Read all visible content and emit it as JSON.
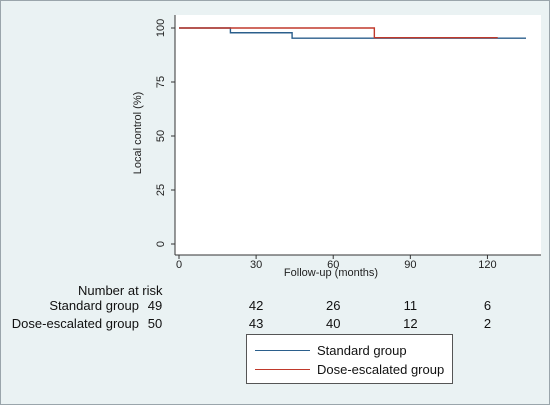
{
  "chart_data": {
    "type": "line",
    "title": "",
    "xlabel": "Follow-up (months)",
    "ylabel": "Local control (%)",
    "xlim": [
      0,
      135
    ],
    "ylim": [
      0,
      100
    ],
    "x_ticks": [
      0,
      30,
      60,
      90,
      120
    ],
    "y_ticks": [
      0,
      25,
      50,
      75,
      100
    ],
    "grid": false,
    "step": true,
    "series": [
      {
        "name": "Standard group",
        "color": "#2b5f8c",
        "x": [
          0,
          20,
          44,
          135
        ],
        "y": [
          100,
          97.8,
          95.3,
          95.3
        ]
      },
      {
        "name": "Dose-escalated group",
        "color": "#c0392b",
        "x": [
          0,
          76,
          124
        ],
        "y": [
          100,
          95.5,
          95.5
        ]
      }
    ],
    "risk_table": {
      "title": "Number at risk",
      "rows": [
        {
          "label": "Standard group",
          "values": [
            "49",
            "42",
            "26",
            "11",
            "6"
          ]
        },
        {
          "label": "Dose-escalated group",
          "values": [
            "50",
            "43",
            "40",
            "12",
            "2"
          ]
        }
      ]
    },
    "legend": {
      "placement": "bottom-center",
      "items": [
        {
          "label": "Standard group",
          "color": "#2b5f8c"
        },
        {
          "label": "Dose-escalated group",
          "color": "#c0392b"
        }
      ]
    }
  }
}
